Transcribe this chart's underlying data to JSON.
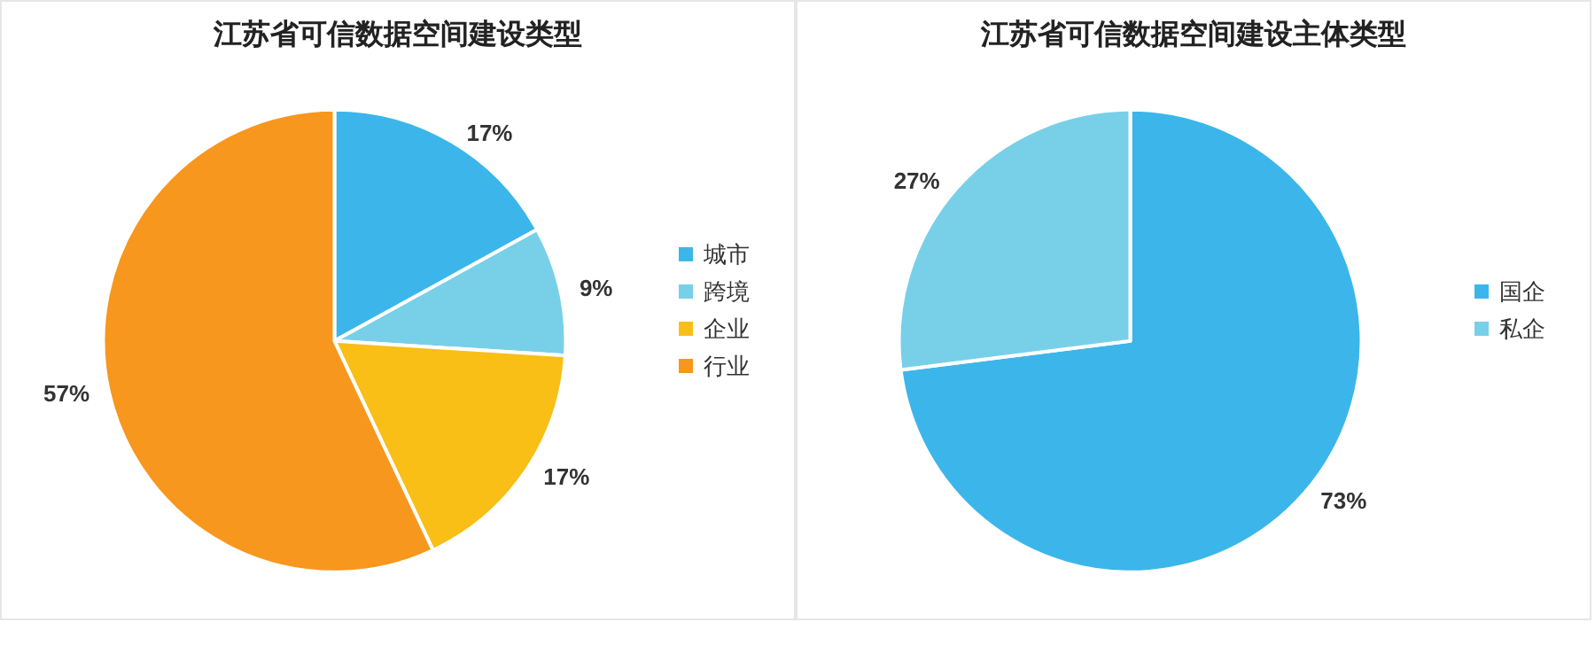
{
  "chart_data": [
    {
      "type": "pie",
      "title": "江苏省可信数据空间建设类型",
      "categories": [
        "城市",
        "跨境",
        "企业",
        "行业"
      ],
      "values": [
        17,
        9,
        17,
        57
      ],
      "colors": [
        "#3cb6ea",
        "#78d0e8",
        "#f9bf16",
        "#f8971d"
      ],
      "value_labels": [
        "17%",
        "9%",
        "17%",
        "57%"
      ],
      "legend": "right"
    },
    {
      "type": "pie",
      "title": "江苏省可信数据空间建设主体类型",
      "categories": [
        "国企",
        "私企"
      ],
      "values": [
        73,
        27
      ],
      "colors": [
        "#3cb6ea",
        "#78d0e8"
      ],
      "value_labels": [
        "73%",
        "27%"
      ],
      "legend": "right"
    }
  ]
}
